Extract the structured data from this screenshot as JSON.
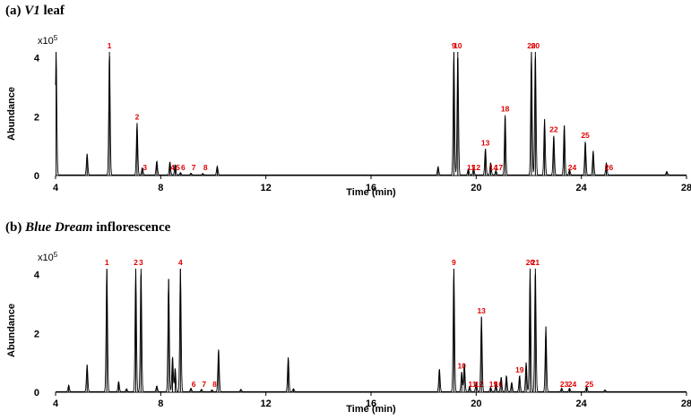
{
  "chart_data": [
    {
      "type": "line",
      "panel_label": "(a)",
      "title_italic": "V1",
      "title_rest": " leaf",
      "xlabel": "Time (min)",
      "ylabel": "Abundance",
      "y_multiplier": "x10",
      "y_multiplier_exp": "5",
      "xlim": [
        4,
        28
      ],
      "ylim": [
        0,
        4.2
      ],
      "xticks": [
        "4",
        "8",
        "12",
        "16",
        "20",
        "24",
        "28"
      ],
      "yticks": [
        "0",
        "2",
        "4"
      ],
      "peaks": [
        {
          "label": "",
          "t": 4.02,
          "h": 4.2
        },
        {
          "label": "",
          "t": 5.2,
          "h": 0.72
        },
        {
          "label": "1",
          "t": 6.05,
          "h": 4.2
        },
        {
          "label": "2",
          "t": 7.1,
          "h": 1.78
        },
        {
          "label": "3",
          "t": 7.3,
          "h": 0.25
        },
        {
          "label": "",
          "t": 7.85,
          "h": 0.48
        },
        {
          "label": "4",
          "t": 8.35,
          "h": 0.45
        },
        {
          "label": "5",
          "t": 8.55,
          "h": 0.35
        },
        {
          "label": "6",
          "t": 8.75,
          "h": 0.08
        },
        {
          "label": "7",
          "t": 9.15,
          "h": 0.06
        },
        {
          "label": "8",
          "t": 9.6,
          "h": 0.05
        },
        {
          "label": "",
          "t": 10.15,
          "h": 0.3
        },
        {
          "label": "",
          "t": 18.55,
          "h": 0.28
        },
        {
          "label": "9",
          "t": 19.15,
          "h": 4.2
        },
        {
          "label": "10",
          "t": 19.3,
          "h": 4.2
        },
        {
          "label": "11",
          "t": 19.7,
          "h": 0.2
        },
        {
          "label": "12",
          "t": 19.9,
          "h": 0.22
        },
        {
          "label": "13",
          "t": 20.35,
          "h": 0.9
        },
        {
          "label": "14",
          "t": 20.55,
          "h": 0.42
        },
        {
          "label": "17",
          "t": 20.75,
          "h": 0.15
        },
        {
          "label": "18",
          "t": 21.1,
          "h": 2.05
        },
        {
          "label": "20",
          "t": 22.1,
          "h": 4.2
        },
        {
          "label": "20",
          "t": 22.25,
          "h": 4.2
        },
        {
          "label": "",
          "t": 22.6,
          "h": 1.9
        },
        {
          "label": "22",
          "t": 22.95,
          "h": 1.35
        },
        {
          "label": "",
          "t": 23.35,
          "h": 1.7
        },
        {
          "label": "24",
          "t": 23.55,
          "h": 0.18
        },
        {
          "label": "25",
          "t": 24.15,
          "h": 1.15
        },
        {
          "label": "",
          "t": 24.45,
          "h": 0.82
        },
        {
          "label": "26",
          "t": 24.95,
          "h": 0.42
        },
        {
          "label": "",
          "t": 27.25,
          "h": 0.12
        }
      ]
    },
    {
      "type": "line",
      "panel_label": "(b)",
      "title_italic": "Blue Dream",
      "title_rest": " inflorescence",
      "xlabel": "Time (min)",
      "ylabel": "Abundance",
      "y_multiplier": "x10",
      "y_multiplier_exp": "5",
      "xlim": [
        4,
        28
      ],
      "ylim": [
        0,
        4.2
      ],
      "xticks": [
        "4",
        "8",
        "12",
        "16",
        "20",
        "24",
        "28"
      ],
      "yticks": [
        "0",
        "2",
        "4"
      ],
      "peaks": [
        {
          "label": "",
          "t": 4.5,
          "h": 0.22
        },
        {
          "label": "",
          "t": 5.2,
          "h": 0.92
        },
        {
          "label": "1",
          "t": 5.95,
          "h": 4.2
        },
        {
          "label": "",
          "t": 6.4,
          "h": 0.35
        },
        {
          "label": "",
          "t": 6.7,
          "h": 0.1
        },
        {
          "label": "2",
          "t": 7.05,
          "h": 4.2
        },
        {
          "label": "3",
          "t": 7.25,
          "h": 4.2
        },
        {
          "label": "",
          "t": 7.85,
          "h": 0.2
        },
        {
          "label": "",
          "t": 8.3,
          "h": 3.85
        },
        {
          "label": "",
          "t": 8.45,
          "h": 1.2
        },
        {
          "label": "",
          "t": 8.55,
          "h": 0.8
        },
        {
          "label": "4",
          "t": 8.75,
          "h": 4.2
        },
        {
          "label": "6",
          "t": 9.15,
          "h": 0.12
        },
        {
          "label": "7",
          "t": 9.55,
          "h": 0.08
        },
        {
          "label": "8",
          "t": 9.95,
          "h": 0.06
        },
        {
          "label": "",
          "t": 10.2,
          "h": 1.45
        },
        {
          "label": "",
          "t": 11.05,
          "h": 0.08
        },
        {
          "label": "",
          "t": 12.85,
          "h": 1.18
        },
        {
          "label": "",
          "t": 13.05,
          "h": 0.1
        },
        {
          "label": "",
          "t": 18.6,
          "h": 0.78
        },
        {
          "label": "9",
          "t": 19.15,
          "h": 4.2
        },
        {
          "label": "10",
          "t": 19.45,
          "h": 0.68
        },
        {
          "label": "",
          "t": 19.55,
          "h": 0.95
        },
        {
          "label": "11",
          "t": 19.75,
          "h": 0.18
        },
        {
          "label": "12",
          "t": 20.0,
          "h": 0.32
        },
        {
          "label": "13",
          "t": 20.2,
          "h": 2.55
        },
        {
          "label": "15",
          "t": 20.55,
          "h": 0.15
        },
        {
          "label": "16",
          "t": 20.75,
          "h": 0.28
        },
        {
          "label": "",
          "t": 20.95,
          "h": 0.5
        },
        {
          "label": "",
          "t": 21.15,
          "h": 0.55
        },
        {
          "label": "",
          "t": 21.35,
          "h": 0.32
        },
        {
          "label": "19",
          "t": 21.65,
          "h": 0.55
        },
        {
          "label": "",
          "t": 21.9,
          "h": 1.0
        },
        {
          "label": "20",
          "t": 22.05,
          "h": 4.2
        },
        {
          "label": "21",
          "t": 22.25,
          "h": 4.2
        },
        {
          "label": "",
          "t": 22.65,
          "h": 2.22
        },
        {
          "label": "23",
          "t": 23.25,
          "h": 0.12
        },
        {
          "label": "24",
          "t": 23.55,
          "h": 0.12
        },
        {
          "label": "25",
          "t": 24.2,
          "h": 0.18
        },
        {
          "label": "",
          "t": 24.9,
          "h": 0.06
        }
      ]
    }
  ]
}
